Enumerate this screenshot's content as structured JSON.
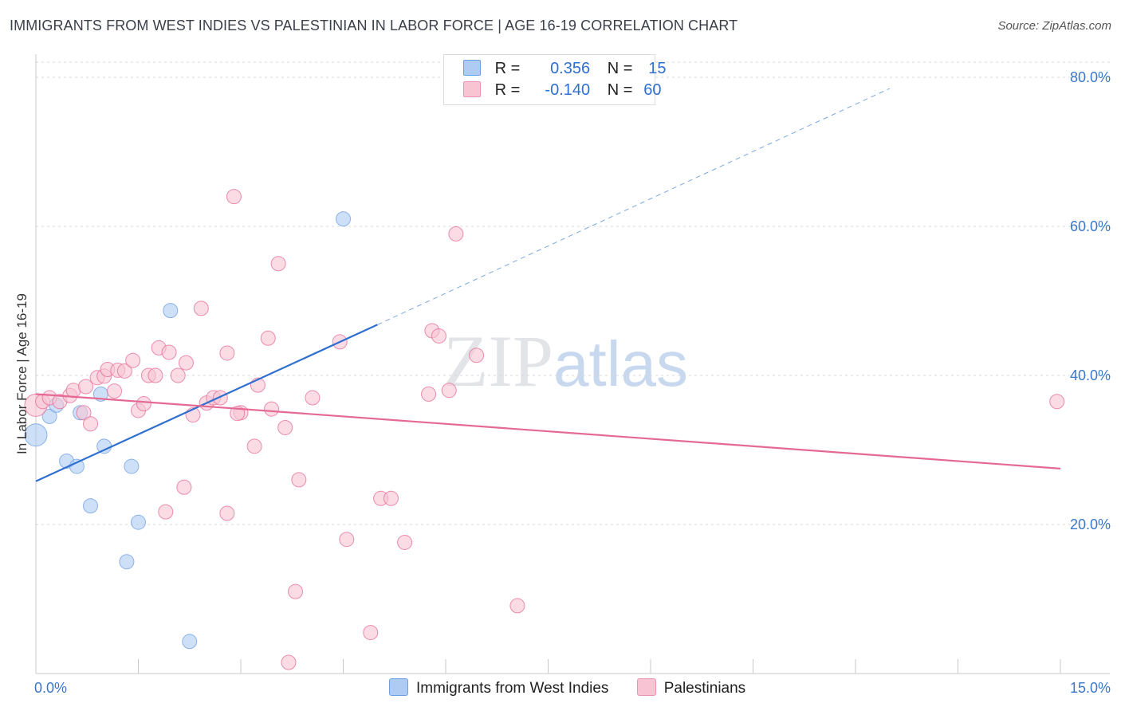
{
  "title": "IMMIGRANTS FROM WEST INDIES VS PALESTINIAN IN LABOR FORCE | AGE 16-19 CORRELATION CHART",
  "source": "Source: ZipAtlas.com",
  "watermark": {
    "zip": "ZIP",
    "atlas": "atlas"
  },
  "legend": {
    "rows": [
      {
        "r_label": "R =",
        "r_value": "0.356",
        "n_label": "N =",
        "n_value": "15",
        "color": "#aecbf3",
        "border": "#6c9ee0"
      },
      {
        "r_label": "R =",
        "r_value": "-0.140",
        "n_label": "N =",
        "n_value": "60",
        "color": "#f8c4d4",
        "border": "#e995b2"
      }
    ]
  },
  "bottom_legend": [
    {
      "label": "Immigrants from West Indies",
      "color": "#aecbf3",
      "border": "#6c9ee0"
    },
    {
      "label": "Palestinians",
      "color": "#f8c4d4",
      "border": "#e995b2"
    }
  ],
  "chart_data": {
    "type": "scatter",
    "title": "IMMIGRANTS FROM WEST INDIES VS PALESTINIAN IN LABOR FORCE | AGE 16-19 CORRELATION CHART",
    "xlabel": "",
    "ylabel": "In Labor Force | Age 16-19",
    "xlim": [
      0,
      15
    ],
    "ylim": [
      0,
      82
    ],
    "x_tick_labels": [
      "0.0%",
      "15.0%"
    ],
    "y_ticks": [
      20,
      40,
      60,
      80
    ],
    "y_tick_labels": [
      "20.0%",
      "40.0%",
      "60.0%",
      "80.0%"
    ],
    "grid": true,
    "series": [
      {
        "name": "Immigrants from West Indies",
        "color": "#6c9ee0",
        "fill": "#aecbf3",
        "points": [
          [
            0.0,
            32.0,
            14
          ],
          [
            0.2,
            34.5,
            9
          ],
          [
            0.3,
            36.0,
            9
          ],
          [
            0.45,
            28.5,
            9
          ],
          [
            0.6,
            27.8,
            9
          ],
          [
            0.65,
            35.0,
            9
          ],
          [
            0.8,
            22.5,
            9
          ],
          [
            0.95,
            37.5,
            9
          ],
          [
            1.0,
            30.5,
            9
          ],
          [
            1.4,
            27.8,
            9
          ],
          [
            1.5,
            20.3,
            9
          ],
          [
            1.33,
            15.0,
            9
          ],
          [
            1.97,
            48.7,
            9
          ],
          [
            2.25,
            4.3,
            9
          ],
          [
            4.5,
            61.0,
            9
          ]
        ],
        "trend": {
          "x0": 0.0,
          "y0": 25.8,
          "x1": 5.0,
          "y1": 46.8,
          "dash_to_x": 12.5,
          "dash_to_y": 78.5
        }
      },
      {
        "name": "Palestinians",
        "color": "#e46a95",
        "fill": "#f8c4d4",
        "points": [
          [
            0.0,
            36.0,
            14
          ],
          [
            0.1,
            36.5,
            9
          ],
          [
            0.2,
            37.0,
            9
          ],
          [
            0.35,
            36.5,
            9
          ],
          [
            0.5,
            37.3,
            9
          ],
          [
            0.55,
            38.0,
            9
          ],
          [
            0.7,
            35.0,
            9
          ],
          [
            0.73,
            38.5,
            9
          ],
          [
            0.8,
            33.5,
            9
          ],
          [
            0.9,
            39.7,
            9
          ],
          [
            1.0,
            39.9,
            9
          ],
          [
            1.05,
            40.8,
            9
          ],
          [
            1.15,
            37.9,
            9
          ],
          [
            1.2,
            40.7,
            9
          ],
          [
            1.3,
            40.6,
            9
          ],
          [
            1.42,
            42.0,
            9
          ],
          [
            1.5,
            35.3,
            9
          ],
          [
            1.58,
            36.2,
            9
          ],
          [
            1.65,
            40.0,
            9
          ],
          [
            1.75,
            40.0,
            9
          ],
          [
            1.8,
            43.7,
            9
          ],
          [
            1.95,
            43.1,
            9
          ],
          [
            2.08,
            40.0,
            9
          ],
          [
            2.2,
            41.7,
            9
          ],
          [
            2.3,
            34.7,
            9
          ],
          [
            2.42,
            49.0,
            9
          ],
          [
            2.5,
            36.3,
            9
          ],
          [
            2.6,
            37.0,
            9
          ],
          [
            2.7,
            37.0,
            9
          ],
          [
            2.8,
            43.0,
            9
          ],
          [
            2.9,
            64.0,
            9
          ],
          [
            3.0,
            35.0,
            9
          ],
          [
            3.2,
            30.5,
            9
          ],
          [
            3.25,
            38.7,
            9
          ],
          [
            3.4,
            45.0,
            9
          ],
          [
            3.45,
            35.5,
            9
          ],
          [
            3.55,
            55.0,
            9
          ],
          [
            3.65,
            33.0,
            9
          ],
          [
            3.85,
            26.0,
            9
          ],
          [
            4.05,
            37.0,
            9
          ],
          [
            4.45,
            44.5,
            9
          ],
          [
            4.55,
            18.0,
            9
          ],
          [
            5.05,
            23.5,
            9
          ],
          [
            5.2,
            23.5,
            9
          ],
          [
            5.4,
            17.6,
            9
          ],
          [
            5.75,
            37.5,
            9
          ],
          [
            5.8,
            46.0,
            9
          ],
          [
            5.9,
            45.3,
            9
          ],
          [
            6.05,
            38.0,
            9
          ],
          [
            6.15,
            59.0,
            9
          ],
          [
            6.45,
            42.7,
            9
          ],
          [
            7.05,
            9.1,
            9
          ],
          [
            2.17,
            25.0,
            9
          ],
          [
            1.9,
            21.7,
            9
          ],
          [
            2.8,
            21.5,
            9
          ],
          [
            3.8,
            11.0,
            9
          ],
          [
            3.7,
            1.5,
            9
          ],
          [
            4.9,
            5.5,
            9
          ],
          [
            14.95,
            36.5,
            9
          ],
          [
            2.95,
            34.9,
            9
          ]
        ],
        "trend": {
          "x0": 0.0,
          "y0": 37.5,
          "x1": 15.0,
          "y1": 27.5
        }
      }
    ]
  }
}
